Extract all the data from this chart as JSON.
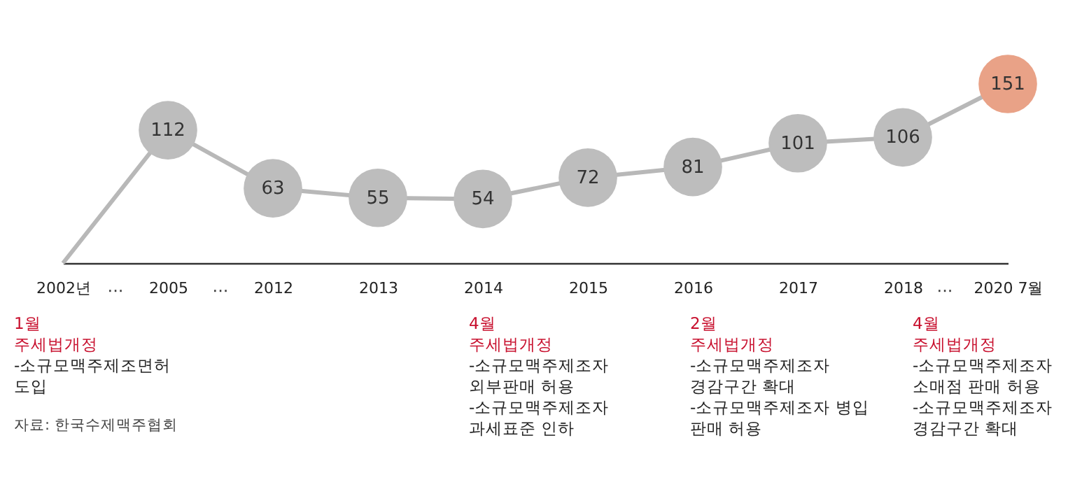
{
  "chart_data": {
    "type": "line",
    "marker": "circle",
    "categories": [
      "2002년",
      "2005",
      "2012",
      "2013",
      "2014",
      "2015",
      "2016",
      "2017",
      "2018",
      "2020 7월"
    ],
    "series": [
      {
        "color": "#b8b8b8",
        "values": [
          0,
          112,
          63,
          55,
          54,
          72,
          81,
          101,
          106,
          151
        ],
        "value_labels": [
          null,
          "112",
          "63",
          "55",
          "54",
          "72",
          "81",
          "101",
          "106",
          "151"
        ],
        "colors": [
          null,
          "#bdbdbd",
          "#bdbdbd",
          "#bdbdbd",
          "#bdbdbd",
          "#bdbdbd",
          "#bdbdbd",
          "#bdbdbd",
          "#bdbdbd",
          "#e9a287"
        ]
      }
    ],
    "annotations": [
      "1월\n주세법개정",
      "-소규모맥주제조면허\n도입",
      "4월\n주세법개정",
      "-소규모맥주제조자\n외부판매 허용\n-소규모맥주제조자\n과세표준 인하",
      "2월\n주세법개정",
      "-소규모맥주제조자\n경감구간 확대\n-소규모맥주제조자 병입\n판매 허용",
      "4월\n주세법개정",
      "-소규모맥주제조자\n소매점 판매 허용\n-소규모맥주제조자\n경감구간 확대",
      "···",
      "···",
      "···",
      "자료: 한국수제맥주협회"
    ]
  }
}
